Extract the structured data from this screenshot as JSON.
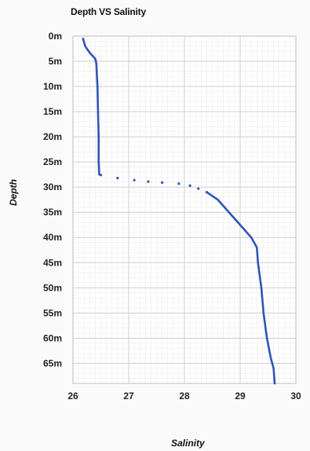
{
  "chart_data": {
    "type": "line",
    "title": "Depth VS Salinity",
    "xlabel": "Salinity",
    "ylabel": "Depth",
    "xlim": [
      26,
      30
    ],
    "ylim": [
      0,
      69
    ],
    "x_ticks": [
      "26",
      "27",
      "28",
      "29",
      "30"
    ],
    "y_ticks": [
      "0m",
      "5m",
      "10m",
      "15m",
      "20m",
      "25m",
      "30m",
      "35m",
      "40m",
      "45m",
      "50m",
      "55m",
      "60m",
      "65m"
    ],
    "y_inverted": true,
    "grid": true,
    "series": [
      {
        "color": "#2f55b5",
        "style": "solid",
        "x": [
          26.18,
          26.22,
          26.3,
          26.4,
          26.42,
          26.44,
          26.45,
          26.46,
          26.46,
          26.47
        ],
        "y": [
          0.5,
          2,
          3.3,
          4.5,
          5.5,
          10,
          15,
          20,
          25,
          27.5
        ]
      },
      {
        "color": "#2f55b5",
        "style": "dotted",
        "x": [
          26.5,
          26.8,
          27.1,
          27.35,
          27.6,
          27.9,
          28.1,
          28.25,
          28.4
        ],
        "y": [
          27.6,
          28.2,
          28.6,
          28.9,
          29.1,
          29.3,
          29.7,
          30.3,
          31.0
        ]
      },
      {
        "color": "#2f55b5",
        "style": "solid",
        "x": [
          28.4,
          28.6,
          28.8,
          29.0,
          29.2,
          29.3,
          29.32,
          29.38,
          29.42,
          29.48,
          29.55,
          29.6,
          29.62
        ],
        "y": [
          31.0,
          32.5,
          35,
          37.5,
          40,
          42,
          45,
          50,
          55,
          60,
          64,
          66,
          69
        ]
      }
    ]
  }
}
